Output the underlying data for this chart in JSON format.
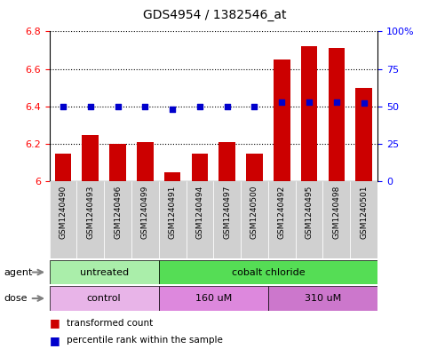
{
  "title": "GDS4954 / 1382546_at",
  "samples": [
    "GSM1240490",
    "GSM1240493",
    "GSM1240496",
    "GSM1240499",
    "GSM1240491",
    "GSM1240494",
    "GSM1240497",
    "GSM1240500",
    "GSM1240492",
    "GSM1240495",
    "GSM1240498",
    "GSM1240501"
  ],
  "transformed_count": [
    6.15,
    6.25,
    6.2,
    6.21,
    6.05,
    6.15,
    6.21,
    6.15,
    6.65,
    6.72,
    6.71,
    6.5
  ],
  "percentile_rank": [
    50,
    50,
    50,
    50,
    48,
    50,
    50,
    50,
    53,
    53,
    53,
    52
  ],
  "ylim_left": [
    6.0,
    6.8
  ],
  "ylim_right": [
    0,
    100
  ],
  "yticks_left": [
    6.0,
    6.2,
    6.4,
    6.6,
    6.8
  ],
  "ytick_labels_left": [
    "6",
    "6.2",
    "6.4",
    "6.6",
    "6.8"
  ],
  "yticks_right": [
    0,
    25,
    50,
    75,
    100
  ],
  "ytick_labels_right": [
    "0",
    "25",
    "50",
    "75",
    "100%"
  ],
  "bar_color": "#cc0000",
  "dot_color": "#0000cc",
  "agent_groups": [
    {
      "label": "untreated",
      "start": 0,
      "end": 4,
      "color": "#aaeea a"
    },
    {
      "label": "cobalt chloride",
      "start": 4,
      "end": 12,
      "color": "#55dd55"
    }
  ],
  "dose_groups": [
    {
      "label": "control",
      "start": 0,
      "end": 4,
      "color": "#e8b4e8"
    },
    {
      "label": "160 uM",
      "start": 4,
      "end": 8,
      "color": "#dd88dd"
    },
    {
      "label": "310 uM",
      "start": 8,
      "end": 12,
      "color": "#cc77cc"
    }
  ],
  "legend_bar_label": "transformed count",
  "legend_dot_label": "percentile rank within the sample",
  "bar_color_legend": "#cc0000",
  "dot_color_legend": "#0000cc",
  "agent_label": "agent",
  "dose_label": "dose"
}
